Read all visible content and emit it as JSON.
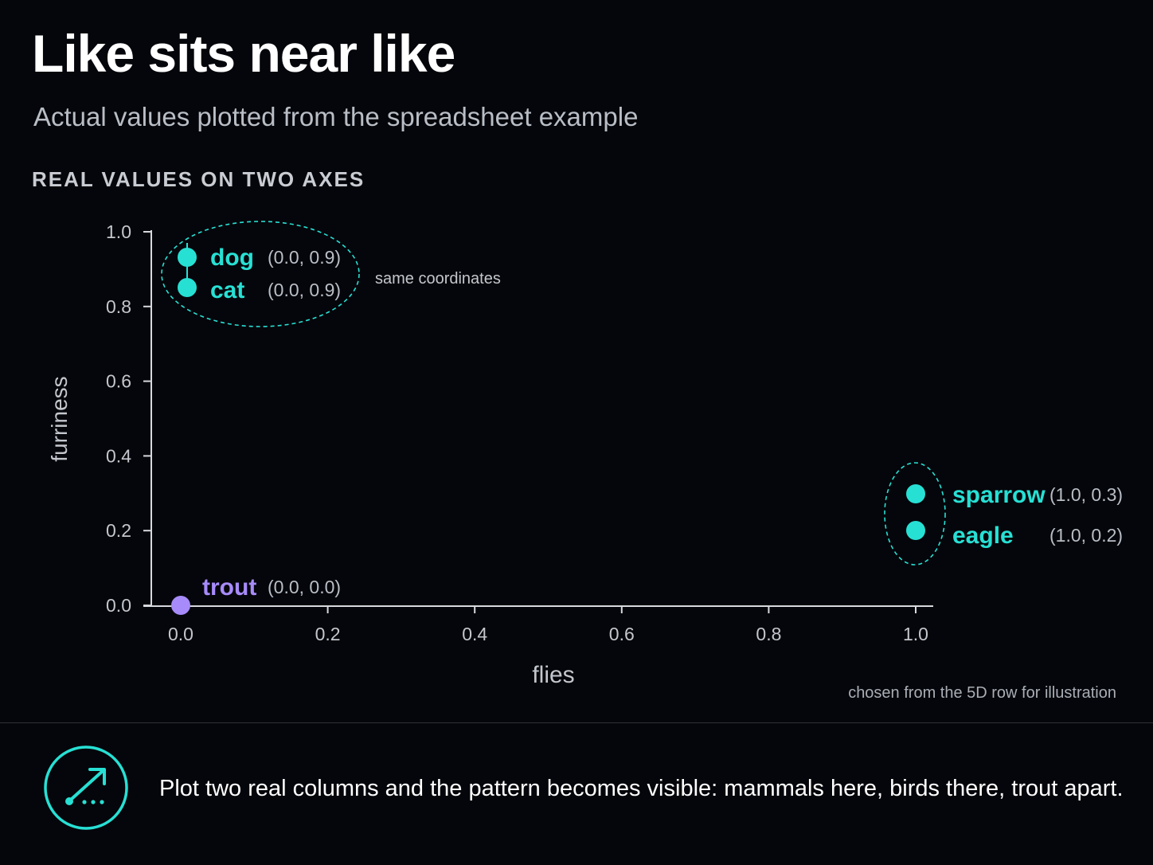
{
  "header": {
    "title": "Like sits near like",
    "subtitle": "Actual values plotted from the spreadsheet example",
    "section_label": "REAL VALUES ON TWO AXES"
  },
  "chart_data": {
    "type": "scatter",
    "xlabel": "flies",
    "ylabel": "furriness",
    "xlim": [
      0,
      1
    ],
    "ylim": [
      0,
      1
    ],
    "x_ticks": [
      "0.0",
      "0.2",
      "0.4",
      "0.6",
      "0.8",
      "1.0"
    ],
    "y_ticks": [
      "0.0",
      "0.2",
      "0.4",
      "0.6",
      "0.8",
      "1.0"
    ],
    "points": [
      {
        "name": "dog",
        "x": 0.0,
        "y": 0.9,
        "label": "(0.0, 0.9)",
        "group": "mammal"
      },
      {
        "name": "cat",
        "x": 0.0,
        "y": 0.9,
        "label": "(0.0, 0.9)",
        "group": "mammal"
      },
      {
        "name": "sparrow",
        "x": 1.0,
        "y": 0.3,
        "label": "(1.0, 0.3)",
        "group": "bird"
      },
      {
        "name": "eagle",
        "x": 1.0,
        "y": 0.2,
        "label": "(1.0, 0.2)",
        "group": "bird"
      },
      {
        "name": "trout",
        "x": 0.0,
        "y": 0.0,
        "label": "(0.0, 0.0)",
        "group": "fish"
      }
    ],
    "annotation": "same coordinates",
    "colors": {
      "mammal": "#27e0d4",
      "bird": "#27e0d4",
      "fish": "#a78bfa",
      "axis": "#d6d9de",
      "tick_text": "#c3c7cd",
      "coord_text": "#b9bec6"
    }
  },
  "footnote": "chosen from the 5D row for illustration",
  "footer": {
    "icon": "scatter-arrow-icon",
    "text": "Plot two real columns and the pattern becomes visible: mammals here, birds there, trout apart."
  }
}
